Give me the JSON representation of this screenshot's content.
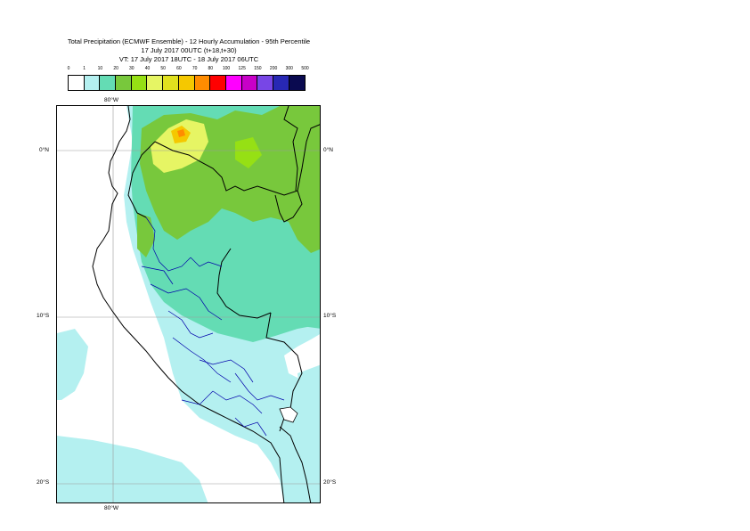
{
  "title": {
    "line1": "Total Precipitation (ECMWF Ensemble) - 12 Hourly Accumulation - 95th Percentile",
    "line2": "17 July 2017 00UTC (t+18,t+30)",
    "line3": "VT: 17 July 2017 18UTC - 18 July 2017 06UTC"
  },
  "legend": {
    "labels": [
      "0",
      "1",
      "10",
      "20",
      "30",
      "40",
      "50",
      "60",
      "70",
      "80",
      "100",
      "125",
      "150",
      "200",
      "300",
      "500"
    ],
    "colors": [
      "#ffffff",
      "#b4f0f0",
      "#64dcb4",
      "#78c83c",
      "#96e014",
      "#e6f564",
      "#e1e11e",
      "#f5c800",
      "#ff8c00",
      "#ff0000",
      "#ff00ff",
      "#c800c8",
      "#7846e6",
      "#2828b4",
      "#0a0a50"
    ]
  },
  "axes": {
    "top": "80°W",
    "bottom": "80°W",
    "left": [
      "0°N",
      "10°S",
      "20°S"
    ],
    "right": [
      "0°N",
      "10°S",
      "20°S"
    ]
  }
}
